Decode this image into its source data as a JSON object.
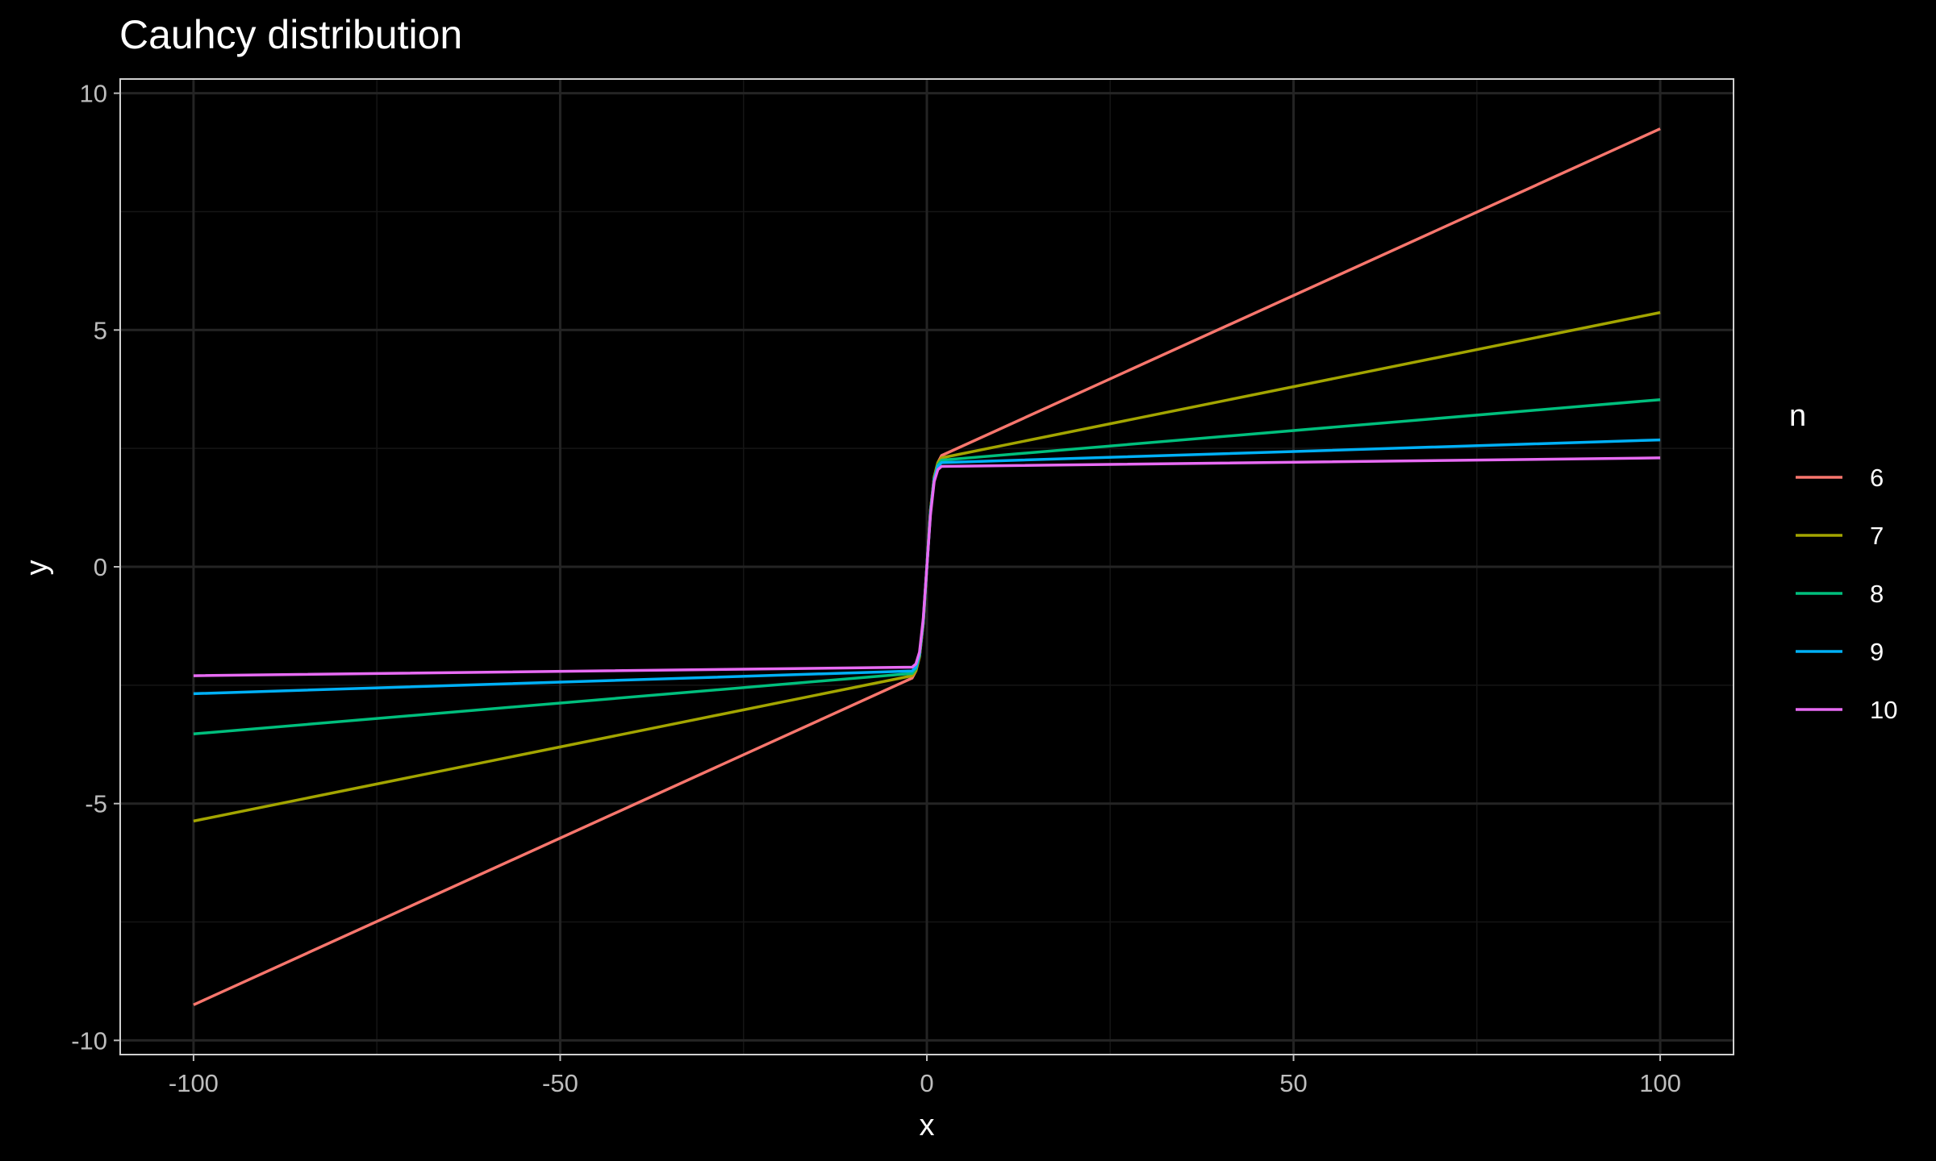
{
  "chart_data": {
    "type": "line",
    "title": "Cauhcy distribution",
    "xlabel": "x",
    "ylabel": "y",
    "xlim": [
      -110,
      110
    ],
    "ylim": [
      -10.3,
      10.3
    ],
    "xticks": [
      -100,
      -50,
      0,
      50,
      100
    ],
    "xtick_labels": [
      "-100",
      "-50",
      "0",
      "50",
      "100"
    ],
    "yticks": [
      -10,
      -5,
      0,
      5,
      10
    ],
    "ytick_labels": [
      "-10",
      "-5",
      "0",
      "5",
      "10"
    ],
    "grid": true,
    "background": "#000000",
    "legend": {
      "title": "n",
      "position": "right"
    },
    "x": [
      -100,
      -2,
      -1.5,
      -1,
      -0.5,
      0,
      0.5,
      1,
      1.5,
      2,
      100
    ],
    "series": [
      {
        "name": "6",
        "color": "#F8766D",
        "values": [
          -9.25,
          -2.35,
          -2.2,
          -1.9,
          -1.2,
          0,
          1.2,
          1.9,
          2.2,
          2.35,
          9.25
        ]
      },
      {
        "name": "7",
        "color": "#A3A500",
        "values": [
          -5.37,
          -2.3,
          -2.2,
          -1.9,
          -1.2,
          0,
          1.2,
          1.9,
          2.2,
          2.3,
          5.37
        ]
      },
      {
        "name": "8",
        "color": "#00BF7D",
        "values": [
          -3.53,
          -2.25,
          -2.15,
          -1.85,
          -1.15,
          0,
          1.15,
          1.85,
          2.15,
          2.25,
          3.53
        ]
      },
      {
        "name": "9",
        "color": "#00B0F6",
        "values": [
          -2.68,
          -2.2,
          -2.12,
          -1.85,
          -1.15,
          0,
          1.15,
          1.85,
          2.12,
          2.2,
          2.68
        ]
      },
      {
        "name": "10",
        "color": "#E76BF3",
        "values": [
          -2.3,
          -2.12,
          -2.05,
          -1.8,
          -1.1,
          0,
          1.1,
          1.8,
          2.05,
          2.12,
          2.3
        ]
      }
    ]
  }
}
